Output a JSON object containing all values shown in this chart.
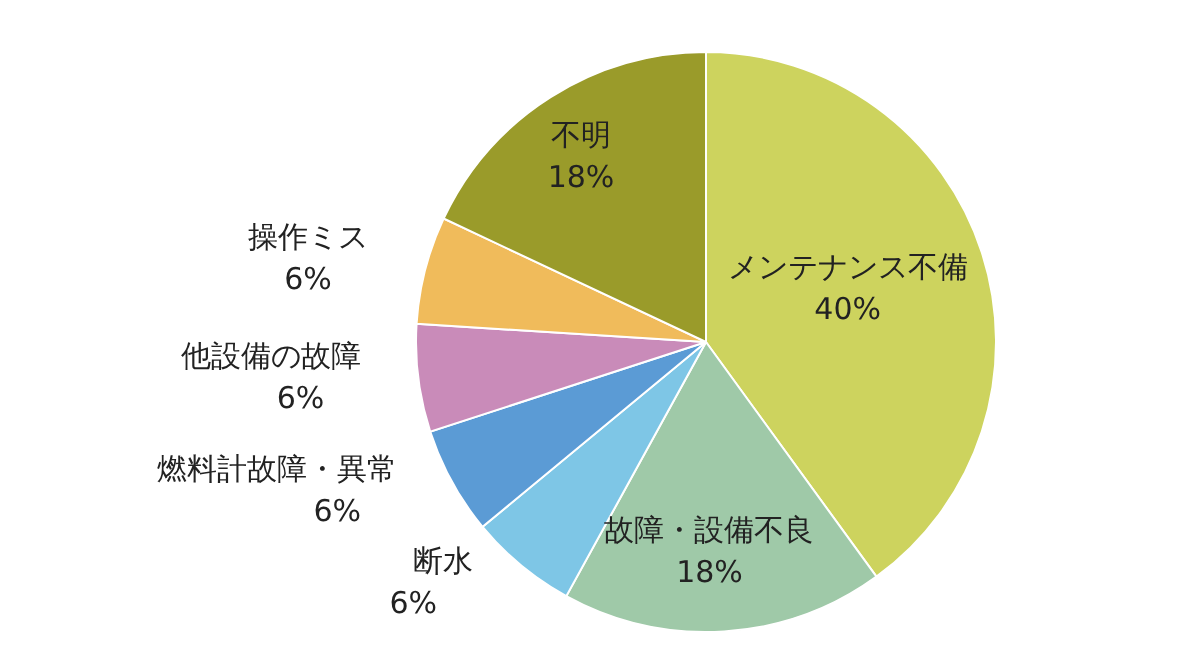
{
  "chart_data": {
    "type": "pie",
    "categories": [
      "メンテナンス不備",
      "故障・設備不良",
      "断水",
      "燃料計故障・異常",
      "他設備の故障",
      "操作ミス",
      "不明"
    ],
    "values": [
      40,
      18,
      6,
      6,
      6,
      6,
      18
    ],
    "value_labels": [
      "40%",
      "18%",
      "6%",
      "6%",
      "6%",
      "6%",
      "18%"
    ],
    "colors": [
      "#cdd35e",
      "#9fc9a8",
      "#7ec6e6",
      "#5b9bd5",
      "#c98bb9",
      "#f0bb5b",
      "#9a9b2a"
    ],
    "legend": false
  }
}
